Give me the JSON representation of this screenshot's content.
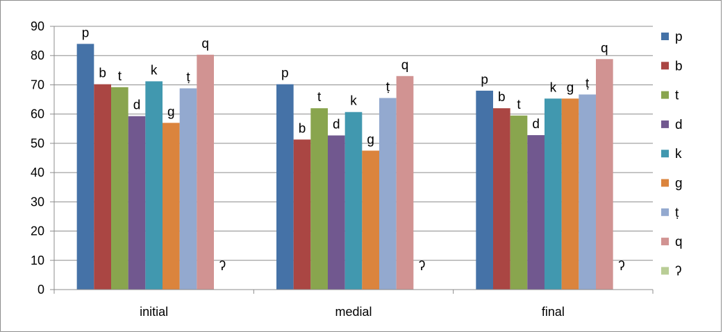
{
  "chart_data": {
    "type": "bar",
    "title": "",
    "xlabel": "",
    "ylabel": "",
    "categories": [
      "initial",
      "medial",
      "final"
    ],
    "ylim": [
      0,
      90
    ],
    "yticks": [
      0,
      10,
      20,
      30,
      40,
      50,
      60,
      70,
      80,
      90
    ],
    "grid": true,
    "legend_position": "right",
    "series": [
      {
        "name": "p",
        "color": "#4572a7",
        "values": [
          84,
          70.2,
          68
        ]
      },
      {
        "name": "b",
        "color": "#aa4643",
        "values": [
          70.2,
          51.3,
          62
        ]
      },
      {
        "name": "t",
        "color": "#89a54e",
        "values": [
          69.2,
          62,
          59.5
        ]
      },
      {
        "name": "d",
        "color": "#71588f",
        "values": [
          59.3,
          52.7,
          52.8
        ]
      },
      {
        "name": "k",
        "color": "#4198af",
        "values": [
          71.2,
          60.7,
          65.3
        ]
      },
      {
        "name": "g",
        "color": "#db843d",
        "values": [
          57,
          47.5,
          65.3
        ]
      },
      {
        "name": "ṭ",
        "color": "#93a9cf",
        "values": [
          68.8,
          65.5,
          66.7
        ]
      },
      {
        "name": "q",
        "color": "#d19392",
        "values": [
          80.3,
          73,
          78.8
        ]
      },
      {
        "name": "ʔ",
        "color": "#b9cd96",
        "values": [
          0,
          0,
          0
        ]
      }
    ]
  }
}
